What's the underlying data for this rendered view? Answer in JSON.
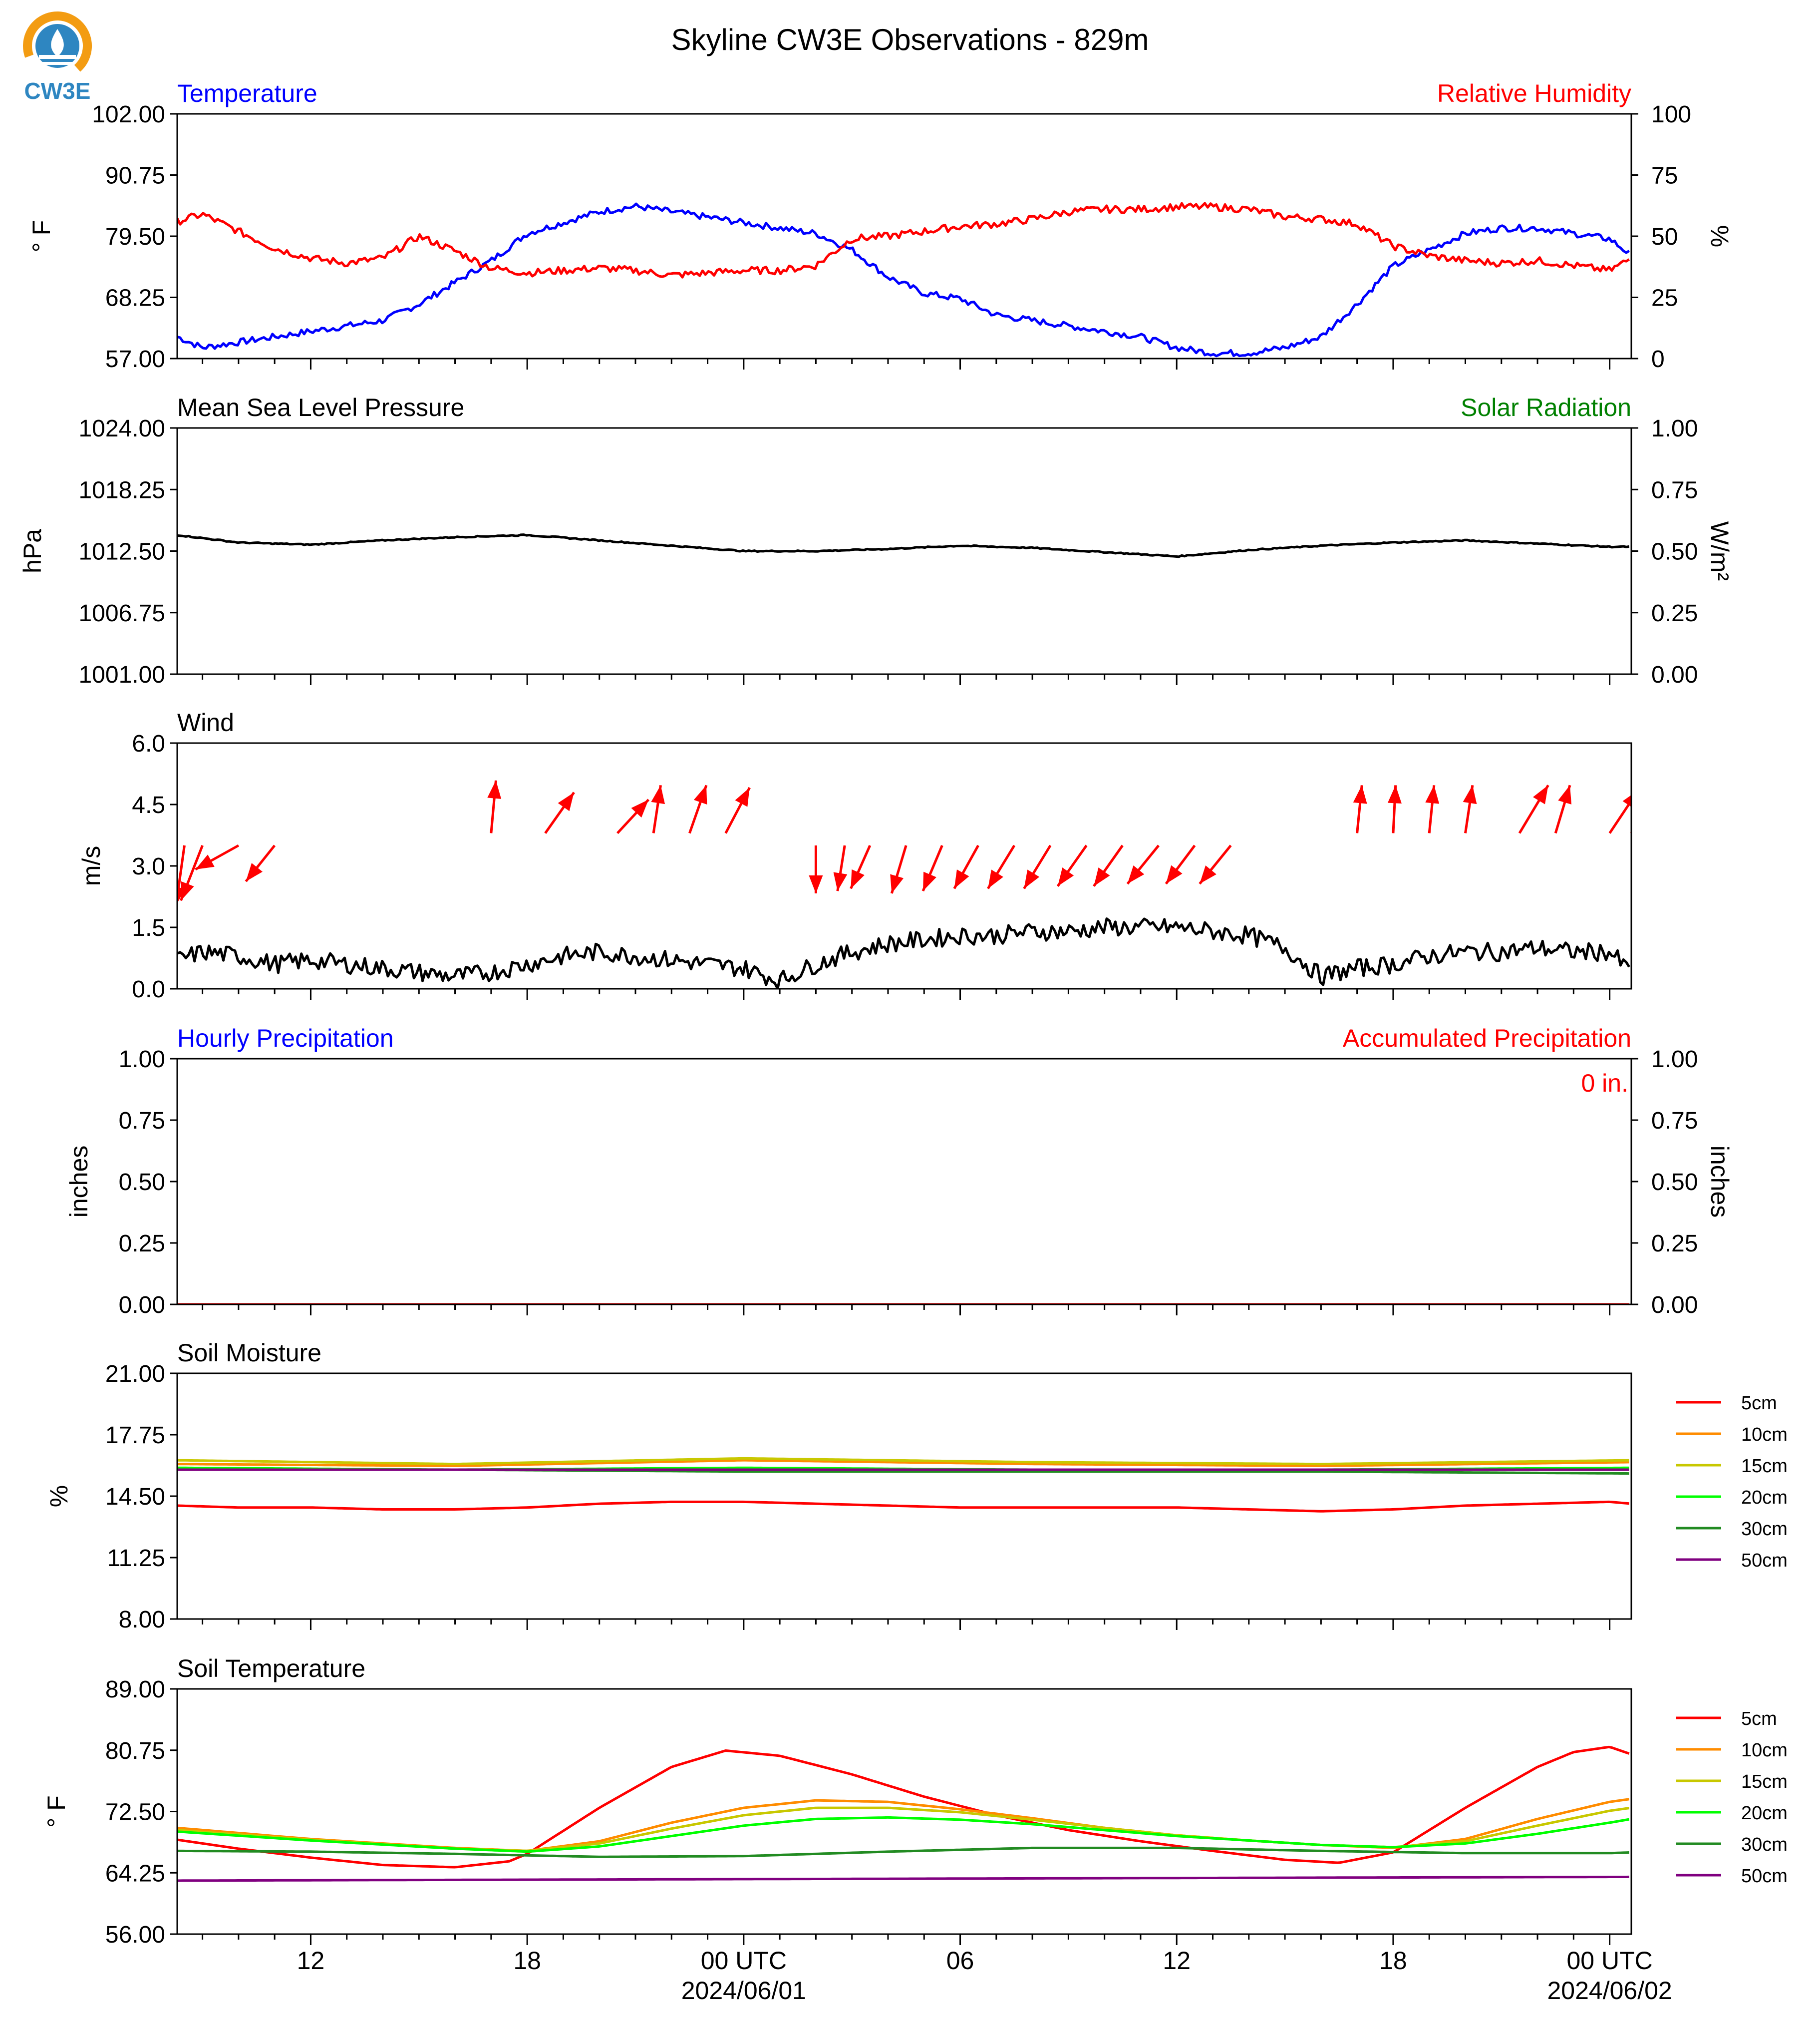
{
  "title": "Skyline CW3E Observations - 829m",
  "logo": {
    "text": "CW3E",
    "colors": {
      "ring": "#f39c12",
      "drop": "#2e86c1"
    }
  },
  "colors": {
    "temperature": "#0000ff",
    "humidity": "#ff0000",
    "pressure": "#000000",
    "solar": "#008000",
    "wind": "#000000",
    "arrow": "#ff0000",
    "hourly_precip": "#0000ff",
    "accum_precip": "#ff0000",
    "soil_5cm": "#ff0000",
    "soil_10cm": "#ff8c00",
    "soil_15cm": "#c8c800",
    "soil_20cm": "#00ff00",
    "soil_30cm": "#228b22",
    "soil_50cm": "#800080"
  },
  "x_axis": {
    "tick_labels": [
      "12",
      "18",
      "00 UTC",
      "06",
      "12",
      "18",
      "00 UTC"
    ],
    "tick_hours": [
      12,
      18,
      24,
      30,
      36,
      42,
      48
    ],
    "date_labels": [
      "2024/06/01",
      "2024/06/02"
    ],
    "range_hours": [
      8.3,
      48.6
    ]
  },
  "chart_data": [
    {
      "type": "line",
      "id": "temp_rh",
      "title_left": "Temperature",
      "title_right": "Relative Humidity",
      "ylabel_left": "° F",
      "ylabel_right": "%",
      "ylim_left": [
        57.0,
        102.0
      ],
      "ylim_right": [
        0,
        100
      ],
      "yticks_left": [
        "57.00",
        "68.25",
        "79.50",
        "90.75",
        "102.00"
      ],
      "yticks_right": [
        "0",
        "25",
        "50",
        "75",
        "100"
      ],
      "series": [
        {
          "axis": "left",
          "color_key": "temperature",
          "x": [
            8.3,
            9,
            10,
            11,
            12,
            13,
            14,
            15,
            16,
            17,
            18,
            19,
            20,
            21,
            22,
            23,
            24,
            25,
            26,
            27,
            28,
            29,
            30,
            31,
            32,
            33,
            34,
            35,
            36,
            37,
            38,
            39,
            40,
            41,
            42,
            43,
            44,
            45,
            46,
            47,
            48,
            48.6
          ],
          "y": [
            61,
            59,
            60,
            61,
            62,
            63,
            64,
            67,
            71,
            75,
            80,
            82,
            84,
            85,
            84,
            83,
            82,
            81,
            80,
            77,
            72,
            69,
            68,
            65,
            64,
            63,
            62,
            61,
            59,
            58,
            58,
            59,
            61,
            67,
            74,
            77,
            80,
            81,
            81,
            80,
            79,
            76
          ]
        },
        {
          "axis": "right",
          "color_key": "humidity",
          "x": [
            8.3,
            9,
            10,
            11,
            12,
            13,
            14,
            15,
            16,
            17,
            18,
            19,
            20,
            21,
            22,
            23,
            24,
            25,
            26,
            27,
            28,
            29,
            30,
            31,
            32,
            33,
            34,
            35,
            36,
            37,
            38,
            39,
            40,
            41,
            42,
            43,
            44,
            45,
            46,
            47,
            48,
            48.6
          ],
          "y": [
            56,
            59,
            52,
            45,
            41,
            39,
            41,
            50,
            44,
            37,
            35,
            36,
            37,
            36,
            34,
            35,
            36,
            36,
            38,
            49,
            50,
            52,
            54,
            55,
            57,
            60,
            61,
            61,
            62,
            62,
            61,
            58,
            57,
            55,
            46,
            42,
            40,
            39,
            40,
            38,
            36,
            41
          ]
        }
      ]
    },
    {
      "type": "line",
      "id": "pressure",
      "title_left": "Mean Sea Level Pressure",
      "title_right": "Solar Radiation",
      "ylabel_left": "hPa",
      "ylabel_right": "W/m²",
      "ylim_left": [
        1001.0,
        1024.0
      ],
      "ylim_right": [
        0,
        1
      ],
      "yticks_left": [
        "1001.00",
        "1006.75",
        "1012.50",
        "1018.25",
        "1024.00"
      ],
      "yticks_right": [
        "0.00",
        "0.25",
        "0.50",
        "0.75",
        "1.00"
      ],
      "series": [
        {
          "axis": "left",
          "color_key": "pressure",
          "x": [
            8.3,
            10,
            12,
            14,
            16,
            18,
            20,
            22,
            24,
            26,
            28,
            30,
            32,
            34,
            36,
            38,
            40,
            42,
            44,
            46,
            48,
            48.6
          ],
          "y": [
            1014.0,
            1013.3,
            1013.1,
            1013.5,
            1013.8,
            1014.0,
            1013.5,
            1013.0,
            1012.5,
            1012.5,
            1012.7,
            1013.0,
            1012.8,
            1012.4,
            1012.0,
            1012.6,
            1013.0,
            1013.3,
            1013.5,
            1013.2,
            1012.9,
            1012.9
          ]
        }
      ]
    },
    {
      "type": "line",
      "id": "wind",
      "title_left": "Wind",
      "ylabel_left": "m/s",
      "ylim_left": [
        0.0,
        6.0
      ],
      "yticks_left": [
        "0.0",
        "1.5",
        "3.0",
        "4.5",
        "6.0"
      ],
      "series": [
        {
          "axis": "left",
          "color_key": "wind",
          "x": [
            8.3,
            9,
            10,
            11,
            12,
            13,
            14,
            15,
            16,
            17,
            18,
            19,
            20,
            21,
            22,
            23,
            24,
            25,
            26,
            27,
            28,
            29,
            30,
            31,
            32,
            33,
            34,
            35,
            36,
            37,
            38,
            39,
            40,
            41,
            42,
            43,
            44,
            45,
            46,
            47,
            48,
            48.6
          ],
          "y": [
            0.7,
            0.9,
            0.8,
            0.6,
            0.7,
            0.6,
            0.5,
            0.4,
            0.3,
            0.4,
            0.6,
            0.8,
            0.9,
            0.8,
            0.7,
            0.6,
            0.5,
            0.2,
            0.6,
            0.9,
            1.1,
            1.2,
            1.3,
            1.3,
            1.4,
            1.4,
            1.5,
            1.5,
            1.5,
            1.4,
            1.3,
            1.0,
            0.3,
            0.5,
            0.6,
            0.8,
            0.9,
            0.9,
            1.0,
            0.9,
            0.9,
            0.4
          ]
        }
      ],
      "arrows": {
        "hours": [
          8.5,
          9.0,
          10.0,
          11.0,
          17.0,
          18.5,
          20.5,
          21.5,
          22.5,
          23.5,
          26.0,
          26.8,
          27.5,
          28.5,
          29.5,
          30.5,
          31.5,
          32.5,
          33.5,
          34.5,
          35.5,
          36.5,
          37.5,
          41.0,
          42.0,
          43.0,
          44.0,
          45.5,
          46.5,
          48.0,
          48.6
        ],
        "u": [
          -0.35,
          -0.9,
          -1.8,
          -1.2,
          0.2,
          1.2,
          1.3,
          0.3,
          0.7,
          1.0,
          0,
          -0.3,
          -0.8,
          -0.6,
          -0.8,
          -1.0,
          -1.1,
          -1.1,
          -1.2,
          -1.2,
          -1.3,
          -1.2,
          -1.3,
          0.2,
          0.1,
          0.2,
          0.3,
          1.2,
          0.6,
          1.2,
          1.1
        ],
        "v": [
          -2.5,
          -2.3,
          -1.0,
          -1.5,
          2.2,
          1.7,
          1.4,
          2.0,
          2.0,
          1.9,
          -2.0,
          -1.9,
          -1.8,
          -2.0,
          -1.9,
          -1.8,
          -1.8,
          -1.8,
          -1.7,
          -1.7,
          -1.6,
          -1.6,
          -1.6,
          2.0,
          2.0,
          2.0,
          2.0,
          2.0,
          2.0,
          1.8,
          1.8
        ],
        "base_ms": [
          3.5,
          3.5,
          3.5,
          3.5,
          3.8,
          3.8,
          3.8,
          3.8,
          3.8,
          3.8,
          3.5,
          3.5,
          3.5,
          3.5,
          3.5,
          3.5,
          3.5,
          3.5,
          3.5,
          3.5,
          3.5,
          3.5,
          3.5,
          3.8,
          3.8,
          3.8,
          3.8,
          3.8,
          3.8,
          3.8,
          3.8
        ]
      }
    },
    {
      "type": "line",
      "id": "precip",
      "title_left": "Hourly Precipitation",
      "title_right": "Accumulated Precipitation",
      "annotation": "0 in.",
      "ylabel_left": "inches",
      "ylabel_right": "inches",
      "ylim_left": [
        0.0,
        1.0
      ],
      "ylim_right": [
        0.0,
        1.0
      ],
      "yticks_left": [
        "0.00",
        "0.25",
        "0.50",
        "0.75",
        "1.00"
      ],
      "yticks_right": [
        "0.00",
        "0.25",
        "0.50",
        "0.75",
        "1.00"
      ],
      "series": [
        {
          "axis": "left",
          "color_key": "accum_precip",
          "x": [
            8.3,
            48.6
          ],
          "y": [
            0,
            0
          ]
        }
      ]
    },
    {
      "type": "line",
      "id": "soil_moisture",
      "title_left": "Soil Moisture",
      "ylabel_left": "%",
      "ylim_left": [
        8.0,
        21.0
      ],
      "yticks_left": [
        "8.00",
        "11.25",
        "14.50",
        "17.75",
        "21.00"
      ],
      "legend": [
        "5cm",
        "10cm",
        "15cm",
        "20cm",
        "30cm",
        "50cm"
      ],
      "series": [
        {
          "name": "5cm",
          "color_key": "soil_5cm",
          "x": [
            8.3,
            10,
            12,
            14,
            16,
            18,
            20,
            22,
            24,
            26,
            28,
            30,
            32,
            34,
            36,
            38,
            40,
            42,
            44,
            46,
            48,
            48.6
          ],
          "y": [
            14.0,
            13.9,
            13.9,
            13.8,
            13.8,
            13.9,
            14.1,
            14.2,
            14.2,
            14.1,
            14.0,
            13.9,
            13.9,
            13.9,
            13.9,
            13.8,
            13.7,
            13.8,
            14.0,
            14.1,
            14.2,
            14.1
          ]
        },
        {
          "name": "10cm",
          "color_key": "soil_10cm",
          "x": [
            8.3,
            16,
            24,
            32,
            40,
            48.6
          ],
          "y": [
            16.2,
            16.1,
            16.4,
            16.2,
            16.1,
            16.3
          ]
        },
        {
          "name": "15cm",
          "color_key": "soil_15cm",
          "x": [
            8.3,
            16,
            24,
            32,
            40,
            48.6
          ],
          "y": [
            16.4,
            16.2,
            16.5,
            16.3,
            16.2,
            16.4
          ]
        },
        {
          "name": "20cm",
          "color_key": "soil_20cm",
          "x": [
            8.3,
            16,
            24,
            32,
            40,
            48.6
          ],
          "y": [
            16.0,
            15.9,
            16.0,
            15.9,
            15.9,
            16.0
          ]
        },
        {
          "name": "30cm",
          "color_key": "soil_30cm",
          "x": [
            8.3,
            16,
            24,
            32,
            40,
            48.6
          ],
          "y": [
            15.9,
            15.9,
            15.8,
            15.8,
            15.8,
            15.7
          ]
        },
        {
          "name": "50cm",
          "color_key": "soil_50cm",
          "x": [
            8.3,
            16,
            24,
            32,
            40,
            48.6
          ],
          "y": [
            15.9,
            15.9,
            15.9,
            15.9,
            15.9,
            15.9
          ]
        }
      ]
    },
    {
      "type": "line",
      "id": "soil_temp",
      "title_left": "Soil Temperature",
      "ylabel_left": "° F",
      "ylim_left": [
        56.0,
        89.0
      ],
      "yticks_left": [
        "56.00",
        "64.25",
        "72.50",
        "80.75",
        "89.00"
      ],
      "legend": [
        "5cm",
        "10cm",
        "15cm",
        "20cm",
        "30cm",
        "50cm"
      ],
      "series": [
        {
          "name": "5cm",
          "color_key": "soil_5cm",
          "x": [
            8.3,
            10,
            12,
            14,
            16,
            17.5,
            18,
            20,
            22,
            23.5,
            25,
            27,
            29,
            31,
            33,
            35,
            37,
            39,
            40.5,
            42,
            44,
            46,
            47,
            48,
            48.6
          ],
          "y": [
            68.7,
            67.5,
            66.3,
            65.3,
            65.0,
            65.8,
            66.8,
            73,
            78.5,
            80.7,
            80.0,
            77.5,
            74.5,
            72.0,
            70.0,
            68.5,
            67.2,
            66.0,
            65.6,
            67.0,
            73.0,
            78.5,
            80.5,
            81.2,
            80.2
          ]
        },
        {
          "name": "10cm",
          "color_key": "soil_10cm",
          "x": [
            8.3,
            12,
            16,
            18,
            20,
            22,
            24,
            26,
            28,
            30,
            32,
            34,
            36,
            38,
            40,
            42,
            44,
            46,
            48,
            48.6
          ],
          "y": [
            70.3,
            68.8,
            67.6,
            67.2,
            68.5,
            71.0,
            73.0,
            74.0,
            73.8,
            72.8,
            71.6,
            70.3,
            69.3,
            68.6,
            68.0,
            67.6,
            68.8,
            71.5,
            73.8,
            74.2
          ]
        },
        {
          "name": "15cm",
          "color_key": "soil_15cm",
          "x": [
            8.3,
            12,
            16,
            18,
            20,
            22,
            24,
            26,
            28,
            30,
            32,
            34,
            36,
            38,
            40,
            42,
            44,
            46,
            48,
            48.6
          ],
          "y": [
            70.0,
            68.7,
            67.5,
            67.2,
            68.2,
            70.2,
            72.0,
            73.0,
            73.0,
            72.4,
            71.4,
            70.3,
            69.3,
            68.6,
            68.0,
            67.7,
            68.5,
            70.6,
            72.6,
            73.0
          ]
        },
        {
          "name": "20cm",
          "color_key": "soil_20cm",
          "x": [
            8.3,
            12,
            16,
            18,
            20,
            22,
            24,
            26,
            28,
            30,
            32,
            34,
            36,
            38,
            40,
            42,
            44,
            46,
            48,
            48.6
          ],
          "y": [
            69.8,
            68.6,
            67.5,
            67.1,
            67.8,
            69.2,
            70.6,
            71.5,
            71.7,
            71.4,
            70.8,
            70.0,
            69.2,
            68.6,
            68.0,
            67.7,
            68.2,
            69.5,
            71.0,
            71.5
          ]
        },
        {
          "name": "30cm",
          "color_key": "soil_30cm",
          "x": [
            8.3,
            12,
            16,
            20,
            24,
            28,
            32,
            36,
            40,
            44,
            48,
            48.6
          ],
          "y": [
            67.2,
            67.1,
            66.8,
            66.4,
            66.5,
            67.1,
            67.6,
            67.6,
            67.2,
            66.9,
            66.9,
            67.0
          ]
        },
        {
          "name": "50cm",
          "color_key": "soil_50cm",
          "x": [
            8.3,
            16,
            24,
            32,
            40,
            48.6
          ],
          "y": [
            63.2,
            63.3,
            63.4,
            63.5,
            63.6,
            63.7
          ]
        }
      ]
    }
  ]
}
